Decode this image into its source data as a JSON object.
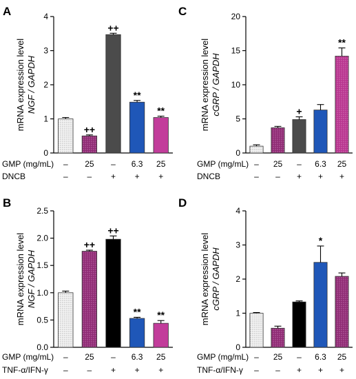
{
  "chart_data": [
    {
      "panel": "A",
      "type": "bar",
      "ylabel_line1": "mRNA expression level",
      "ylabel_line2": "NGF / GAPDH",
      "ylim": [
        0,
        4
      ],
      "yticks": [
        "0",
        "1",
        "2",
        "3",
        "4"
      ],
      "row_labels": [
        "GMP (mg/mL)",
        "DNCB"
      ],
      "row1": [
        "–",
        "25",
        "–",
        "6.3",
        "25"
      ],
      "row2": [
        "–",
        "–",
        "+",
        "+",
        "+"
      ],
      "values": [
        1.0,
        0.5,
        3.47,
        1.49,
        1.04
      ],
      "errors": [
        0.04,
        0.03,
        0.04,
        0.05,
        0.04
      ],
      "annotations": [
        "",
        "++",
        "++",
        "**",
        "**"
      ]
    },
    {
      "panel": "B",
      "type": "bar",
      "ylabel_line1": "mRNA  expression level",
      "ylabel_line2": "NGF / GAPDH",
      "ylim": [
        0,
        2.5
      ],
      "yticks": [
        "0.0",
        "0.5",
        "1.0",
        "1.5",
        "2.0",
        "2.5"
      ],
      "row_labels": [
        "GMP (mg/mL)",
        "TNF-α/IFN-γ"
      ],
      "row1": [
        "–",
        "25",
        "–",
        "6.3",
        "25"
      ],
      "row2": [
        "–",
        "–",
        "+",
        "+",
        "+"
      ],
      "values": [
        1.0,
        1.76,
        1.98,
        0.53,
        0.44
      ],
      "errors": [
        0.03,
        0.02,
        0.06,
        0.02,
        0.05
      ],
      "annotations": [
        "",
        "++",
        "++",
        "**",
        "**"
      ]
    },
    {
      "panel": "C",
      "type": "bar",
      "ylabel_line1": "mRNA expression level",
      "ylabel_line2": "cGRP / GAPDH",
      "ylim": [
        0,
        20
      ],
      "yticks": [
        "0",
        "5",
        "10",
        "15",
        "20"
      ],
      "row_labels": [
        "GMP (mg/mL)",
        "DNCB"
      ],
      "row1": [
        "–",
        "25",
        "–",
        "6.3",
        "25"
      ],
      "row2": [
        "–",
        "–",
        "+",
        "+",
        "+"
      ],
      "values": [
        1.0,
        3.7,
        4.9,
        6.3,
        14.2
      ],
      "errors": [
        0.2,
        0.2,
        0.4,
        0.8,
        1.2
      ],
      "annotations": [
        "",
        "",
        "+",
        "",
        "**"
      ]
    },
    {
      "panel": "D",
      "type": "bar",
      "ylabel_line1": "mRNA  expression level",
      "ylabel_line2": "cGRP / GAPDH",
      "ylim": [
        0,
        4
      ],
      "yticks": [
        "0",
        "1",
        "2",
        "3",
        "4"
      ],
      "row_labels": [
        "GMP (mg/mL)",
        "TNF-α/IFN-γ"
      ],
      "row1": [
        "–",
        "25",
        "–",
        "6.3",
        "25"
      ],
      "row2": [
        "–",
        "–",
        "+",
        "+",
        "+"
      ],
      "values": [
        1.0,
        0.56,
        1.33,
        2.49,
        2.08
      ],
      "errors": [
        0.02,
        0.06,
        0.03,
        0.48,
        0.1
      ],
      "annotations": [
        "",
        "",
        "",
        "*",
        ""
      ]
    }
  ],
  "colors": {
    "bar_fills": [
      "#f2f2f2",
      "#8e2b73",
      "#4a4a4a",
      "#2155b5",
      "#c0399a"
    ],
    "panel_b_fills": [
      "#f2f2f2",
      "#8e2b73",
      "#000000",
      "#2155b5",
      "#c0399a"
    ],
    "panel_d_fills": [
      "#f2f2f2",
      "#8e2b73",
      "#000000",
      "#2155b5",
      "#8e2b73"
    ]
  }
}
